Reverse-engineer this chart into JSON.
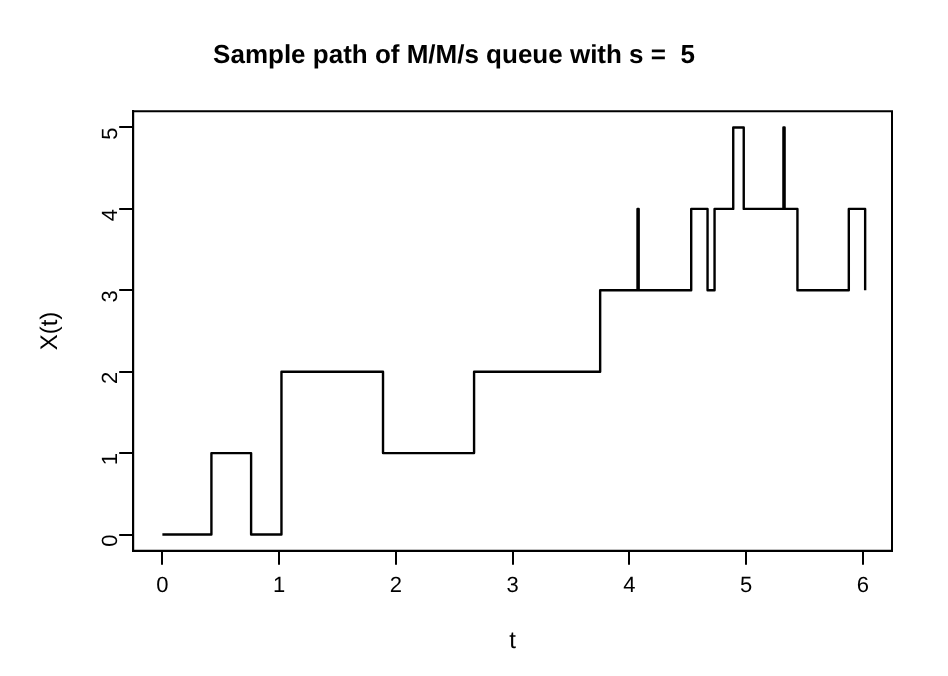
{
  "chart_data": {
    "type": "step",
    "title": "Sample path of M/M/s queue with s =  5",
    "xlabel": "t",
    "ylabel": "X(t)",
    "x": [
      0,
      0.42,
      0.76,
      1.02,
      1.89,
      2.67,
      3.75,
      4.07,
      4.08,
      4.53,
      4.67,
      4.73,
      4.89,
      4.98,
      5.32,
      5.33,
      5.44,
      5.88,
      6.02
    ],
    "series": [
      {
        "color": "#000000",
        "values": [
          0,
          1,
          0,
          2,
          1,
          2,
          3,
          4,
          3,
          4,
          3,
          4,
          5,
          4,
          5,
          4,
          3,
          4,
          3
        ]
      }
    ],
    "xlim": [
      -0.25,
      6.25
    ],
    "xticks": [
      0,
      1,
      2,
      3,
      4,
      5,
      6
    ],
    "ylim": [
      -0.2,
      5.2
    ],
    "yticks": [
      0,
      1,
      2,
      3,
      4,
      5
    ],
    "grid": false,
    "legend": false,
    "marker": "none",
    "line_style": "solid"
  }
}
